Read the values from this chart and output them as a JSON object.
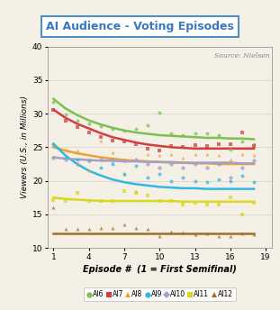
{
  "title": "AI Audience - Voting Episodes",
  "xlabel": "Episode #  (1 = First Semifinal)",
  "ylabel": "Viewers (U.S., in Millions)",
  "source_text": "Source: Nielsen",
  "bg_color": "#f5f0e6",
  "plot_bg_color": "#f5f0e6",
  "title_color": "#3a78c0",
  "ylim": [
    10,
    40
  ],
  "xlim": [
    0.5,
    19.5
  ],
  "yticks": [
    10,
    15,
    20,
    25,
    30,
    35,
    40
  ],
  "xticks": [
    1,
    4,
    7,
    10,
    13,
    16,
    19
  ],
  "seasons": {
    "AI6": {
      "color": "#7dc050",
      "marker": "o",
      "scatter_x": [
        1,
        2,
        3,
        4,
        5,
        6,
        7,
        8,
        9,
        10,
        11,
        12,
        13,
        14,
        15,
        16,
        17,
        18
      ],
      "scatter_y": [
        31.8,
        29.9,
        29.0,
        28.5,
        28.2,
        27.8,
        27.5,
        27.8,
        28.3,
        30.2,
        27.0,
        26.8,
        27.0,
        27.0,
        26.8,
        24.6,
        25.8,
        25.5
      ],
      "trend_x": [
        1,
        2,
        3,
        4,
        5,
        6,
        7,
        8,
        9,
        10,
        11,
        12,
        13,
        14,
        15,
        16,
        17,
        18
      ],
      "trend_y": [
        32.2,
        30.8,
        29.8,
        29.0,
        28.4,
        27.9,
        27.5,
        27.2,
        27.0,
        26.8,
        26.7,
        26.6,
        26.5,
        26.4,
        26.4,
        26.3,
        26.3,
        26.2
      ]
    },
    "AI7": {
      "color": "#d04040",
      "marker": "s",
      "scatter_x": [
        1,
        2,
        3,
        4,
        5,
        6,
        7,
        8,
        9,
        10,
        11,
        12,
        13,
        14,
        15,
        16,
        17,
        18
      ],
      "scatter_y": [
        30.5,
        29.0,
        28.0,
        27.2,
        26.5,
        26.0,
        25.8,
        25.5,
        24.8,
        24.5,
        25.2,
        25.0,
        25.3,
        25.2,
        25.5,
        25.5,
        27.2,
        25.2
      ],
      "trend_x": [
        1,
        2,
        3,
        4,
        5,
        6,
        7,
        8,
        9,
        10,
        11,
        12,
        13,
        14,
        15,
        16,
        17,
        18
      ],
      "trend_y": [
        30.6,
        29.4,
        28.5,
        27.8,
        27.1,
        26.5,
        26.1,
        25.7,
        25.4,
        25.2,
        25.0,
        24.9,
        24.8,
        24.8,
        24.8,
        24.8,
        24.8,
        24.8
      ]
    },
    "AI8": {
      "color": "#f0a030",
      "marker": "^",
      "scatter_x": [
        1,
        2,
        3,
        4,
        5,
        6,
        7,
        8,
        9,
        10,
        11,
        12,
        13,
        14,
        15,
        16,
        17,
        18
      ],
      "scatter_y": [
        25.3,
        24.7,
        24.5,
        21.5,
        26.0,
        24.2,
        21.0,
        18.5,
        24.0,
        23.8,
        24.0,
        23.5,
        24.0,
        24.0,
        23.8,
        23.2,
        24.0,
        23.8
      ],
      "trend_x": [
        1,
        2,
        3,
        4,
        5,
        6,
        7,
        8,
        9,
        10,
        11,
        12,
        13,
        14,
        15,
        16,
        17,
        18
      ],
      "trend_y": [
        25.0,
        24.5,
        24.1,
        23.8,
        23.5,
        23.3,
        23.1,
        23.0,
        22.9,
        22.8,
        22.7,
        22.7,
        22.6,
        22.6,
        22.5,
        22.5,
        22.5,
        22.5
      ]
    },
    "AI9": {
      "color": "#30b8e0",
      "marker": "o",
      "scatter_x": [
        1,
        2,
        3,
        4,
        5,
        6,
        7,
        8,
        9,
        10,
        11,
        12,
        13,
        14,
        15,
        16,
        17,
        18
      ],
      "scatter_y": [
        25.5,
        23.5,
        23.2,
        23.0,
        22.0,
        22.5,
        21.0,
        22.2,
        20.5,
        21.0,
        20.0,
        20.5,
        20.0,
        19.8,
        20.2,
        20.0,
        20.8,
        19.8
      ],
      "trend_x": [
        1,
        2,
        3,
        4,
        5,
        6,
        7,
        8,
        9,
        10,
        11,
        12,
        13,
        14,
        15,
        16,
        17,
        18
      ],
      "trend_y": [
        25.5,
        23.8,
        22.5,
        21.5,
        20.8,
        20.2,
        19.8,
        19.5,
        19.3,
        19.1,
        19.0,
        18.9,
        18.9,
        18.8,
        18.8,
        18.8,
        18.8,
        18.8
      ]
    },
    "AI10": {
      "color": "#a0a0c8",
      "marker": "D",
      "scatter_x": [
        1,
        2,
        3,
        4,
        5,
        6,
        7,
        8,
        9,
        10,
        11,
        12,
        13,
        14,
        15,
        16,
        17,
        18
      ],
      "scatter_y": [
        23.5,
        23.2,
        22.5,
        23.0,
        23.2,
        23.0,
        23.0,
        23.2,
        22.5,
        22.0,
        22.5,
        22.0,
        22.5,
        22.0,
        22.5,
        20.5,
        22.0,
        23.0
      ],
      "trend_x": [
        1,
        2,
        3,
        4,
        5,
        6,
        7,
        8,
        9,
        10,
        11,
        12,
        13,
        14,
        15,
        16,
        17,
        18
      ],
      "trend_y": [
        23.5,
        23.3,
        23.2,
        23.1,
        23.0,
        23.0,
        22.9,
        22.9,
        22.8,
        22.8,
        22.8,
        22.7,
        22.7,
        22.7,
        22.7,
        22.7,
        22.6,
        22.6
      ]
    },
    "AI11": {
      "color": "#d8d820",
      "marker": "s",
      "scatter_x": [
        1,
        2,
        3,
        4,
        5,
        6,
        7,
        8,
        9,
        10,
        11,
        12,
        13,
        14,
        15,
        16,
        17,
        18
      ],
      "scatter_y": [
        17.2,
        17.0,
        18.2,
        17.0,
        17.0,
        17.0,
        18.5,
        18.2,
        17.8,
        17.0,
        17.0,
        16.5,
        16.8,
        16.5,
        16.5,
        17.5,
        15.0,
        16.8
      ],
      "trend_x": [
        1,
        2,
        3,
        4,
        5,
        6,
        7,
        8,
        9,
        10,
        11,
        12,
        13,
        14,
        15,
        16,
        17,
        18
      ],
      "trend_y": [
        17.5,
        17.3,
        17.2,
        17.1,
        17.0,
        17.0,
        17.0,
        17.0,
        17.0,
        17.0,
        17.0,
        16.9,
        16.9,
        16.9,
        16.9,
        16.9,
        16.9,
        16.9
      ]
    },
    "AI12": {
      "color": "#a07028",
      "marker": "^",
      "scatter_x": [
        1,
        2,
        3,
        4,
        5,
        6,
        7,
        8,
        9,
        10,
        11,
        12,
        13,
        14,
        15,
        16,
        17,
        18
      ],
      "scatter_y": [
        16.0,
        12.8,
        12.8,
        12.8,
        13.0,
        13.0,
        13.5,
        13.0,
        12.8,
        11.8,
        12.5,
        12.3,
        12.0,
        12.2,
        11.8,
        11.8,
        12.2,
        12.0
      ],
      "trend_x": [
        1,
        2,
        3,
        4,
        5,
        6,
        7,
        8,
        9,
        10,
        11,
        12,
        13,
        14,
        15,
        16,
        17,
        18
      ],
      "trend_y": [
        12.2,
        12.2,
        12.2,
        12.2,
        12.2,
        12.2,
        12.2,
        12.2,
        12.2,
        12.2,
        12.2,
        12.2,
        12.2,
        12.2,
        12.2,
        12.2,
        12.2,
        12.2
      ]
    }
  }
}
